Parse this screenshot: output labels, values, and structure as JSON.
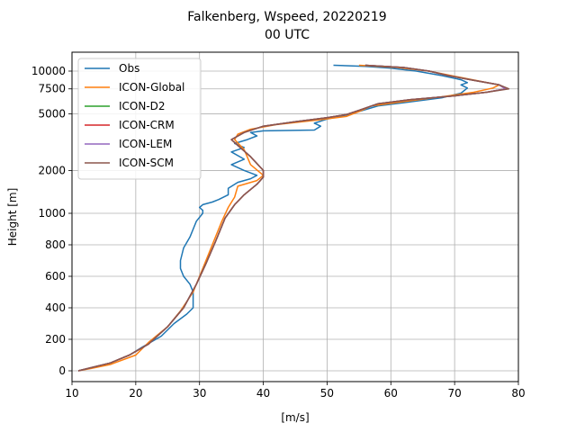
{
  "chart_data": {
    "type": "line",
    "title": "Falkenberg, Wspeed, 20220219",
    "subtitle": "00 UTC",
    "xlabel": "[m/s]",
    "ylabel": "Height [m]",
    "xlim": [
      10,
      80
    ],
    "xticks": [
      10,
      20,
      30,
      40,
      50,
      60,
      70,
      80
    ],
    "yticks": [
      {
        "value": 0,
        "label": "0"
      },
      {
        "value": 200,
        "label": "200"
      },
      {
        "value": 400,
        "label": "400"
      },
      {
        "value": 600,
        "label": "600"
      },
      {
        "value": 800,
        "label": "800"
      },
      {
        "value": 1000,
        "label": "1000"
      },
      {
        "value": 2000,
        "label": "2000"
      },
      {
        "value": 5000,
        "label": "5000"
      },
      {
        "value": 7500,
        "label": "7500"
      },
      {
        "value": 10000,
        "label": "10000"
      }
    ],
    "grid": true,
    "legend_position": "upper left",
    "series": [
      {
        "name": "Obs",
        "color": "#1f77b4",
        "points": [
          [
            11,
            0
          ],
          [
            13,
            20
          ],
          [
            16,
            50
          ],
          [
            19,
            100
          ],
          [
            21,
            150
          ],
          [
            24,
            220
          ],
          [
            26,
            300
          ],
          [
            28,
            360
          ],
          [
            29,
            400
          ],
          [
            29,
            500
          ],
          [
            28.5,
            550
          ],
          [
            27.5,
            600
          ],
          [
            27,
            650
          ],
          [
            27,
            700
          ],
          [
            27.5,
            780
          ],
          [
            28.5,
            850
          ],
          [
            29.5,
            950
          ],
          [
            30.5,
            1000
          ],
          [
            30.5,
            1050
          ],
          [
            30,
            1100
          ],
          [
            30.5,
            1150
          ],
          [
            32,
            1200
          ],
          [
            33,
            1250
          ],
          [
            34.5,
            1350
          ],
          [
            34.5,
            1500
          ],
          [
            36,
            1650
          ],
          [
            38,
            1750
          ],
          [
            39,
            1850
          ],
          [
            37,
            2000
          ],
          [
            35,
            2200
          ],
          [
            37,
            2400
          ],
          [
            35,
            2700
          ],
          [
            37,
            2900
          ],
          [
            35.5,
            3100
          ],
          [
            37.5,
            3300
          ],
          [
            39,
            3500
          ],
          [
            38,
            3700
          ],
          [
            40,
            3800
          ],
          [
            48,
            3850
          ],
          [
            49,
            4100
          ],
          [
            48,
            4300
          ],
          [
            50,
            4600
          ],
          [
            53,
            4900
          ],
          [
            55,
            5200
          ],
          [
            58,
            5700
          ],
          [
            62,
            6000
          ],
          [
            68,
            6500
          ],
          [
            71,
            7000
          ],
          [
            72,
            7600
          ],
          [
            71,
            8000
          ],
          [
            72,
            8300
          ],
          [
            71,
            8700
          ],
          [
            68,
            9300
          ],
          [
            64,
            10000
          ],
          [
            60,
            10500
          ],
          [
            56,
            10800
          ],
          [
            51,
            11000
          ]
        ]
      },
      {
        "name": "ICON-Global",
        "color": "#ff7f0e",
        "points": [
          [
            11,
            0
          ],
          [
            13,
            15
          ],
          [
            16,
            40
          ],
          [
            20,
            100
          ],
          [
            22,
            180
          ],
          [
            25,
            280
          ],
          [
            27,
            380
          ],
          [
            29,
            500
          ],
          [
            30.5,
            650
          ],
          [
            32,
            800
          ],
          [
            33.5,
            950
          ],
          [
            34.5,
            1100
          ],
          [
            35.5,
            1300
          ],
          [
            36,
            1550
          ],
          [
            39,
            1700
          ],
          [
            40,
            1850
          ],
          [
            38,
            2200
          ],
          [
            37,
            2800
          ],
          [
            35.5,
            3300
          ],
          [
            36,
            3600
          ],
          [
            38,
            3900
          ],
          [
            42,
            4200
          ],
          [
            48,
            4500
          ],
          [
            53,
            4800
          ],
          [
            55,
            5200
          ],
          [
            57,
            5700
          ],
          [
            62,
            6100
          ],
          [
            68,
            6600
          ],
          [
            73,
            7100
          ],
          [
            76,
            7600
          ],
          [
            77,
            8000
          ],
          [
            74,
            8500
          ],
          [
            70,
            9200
          ],
          [
            66,
            10000
          ],
          [
            61,
            10600
          ],
          [
            55,
            11000
          ]
        ]
      },
      {
        "name": "ICON-D2",
        "color": "#2ca02c",
        "points": [
          [
            11,
            0
          ],
          [
            13,
            20
          ],
          [
            16,
            50
          ],
          [
            19,
            100
          ],
          [
            22,
            170
          ],
          [
            25,
            280
          ],
          [
            27.5,
            400
          ],
          [
            29.5,
            550
          ],
          [
            31,
            680
          ],
          [
            32.5,
            820
          ],
          [
            34,
            970
          ],
          [
            35.5,
            1150
          ],
          [
            37,
            1350
          ],
          [
            39,
            1600
          ],
          [
            40,
            1800
          ],
          [
            40,
            2000
          ],
          [
            38,
            2500
          ],
          [
            36,
            3000
          ],
          [
            35,
            3300
          ],
          [
            37,
            3700
          ],
          [
            40,
            4100
          ],
          [
            45,
            4400
          ],
          [
            50,
            4700
          ],
          [
            53,
            4950
          ],
          [
            55,
            5300
          ],
          [
            58,
            5900
          ],
          [
            63,
            6300
          ],
          [
            70,
            6700
          ],
          [
            75,
            7100
          ],
          [
            78,
            7500
          ],
          [
            77,
            8000
          ],
          [
            73,
            8600
          ],
          [
            69,
            9300
          ],
          [
            66,
            10000
          ],
          [
            62,
            10600
          ],
          [
            56,
            11000
          ]
        ]
      },
      {
        "name": "ICON-CRM",
        "color": "#d62728",
        "points": [
          [
            11,
            0
          ],
          [
            13,
            20
          ],
          [
            16,
            50
          ],
          [
            19,
            100
          ],
          [
            22,
            170
          ],
          [
            25,
            280
          ],
          [
            27.5,
            400
          ],
          [
            29.5,
            550
          ],
          [
            31,
            680
          ],
          [
            32.5,
            820
          ],
          [
            34,
            970
          ],
          [
            35.5,
            1150
          ],
          [
            37,
            1350
          ],
          [
            39,
            1600
          ],
          [
            40,
            1800
          ],
          [
            40,
            2000
          ],
          [
            38,
            2500
          ],
          [
            36,
            3000
          ],
          [
            35,
            3300
          ],
          [
            37,
            3700
          ],
          [
            40,
            4100
          ],
          [
            45,
            4400
          ],
          [
            50,
            4700
          ],
          [
            53,
            4950
          ],
          [
            55,
            5300
          ],
          [
            58,
            5900
          ],
          [
            63,
            6300
          ],
          [
            70,
            6700
          ],
          [
            75,
            7100
          ],
          [
            78,
            7500
          ],
          [
            77,
            8000
          ],
          [
            73,
            8600
          ],
          [
            69,
            9300
          ],
          [
            66,
            10000
          ],
          [
            62,
            10600
          ],
          [
            56,
            11000
          ]
        ]
      },
      {
        "name": "ICON-LEM",
        "color": "#9467bd",
        "points": [
          [
            11,
            0
          ],
          [
            13,
            20
          ],
          [
            16,
            50
          ],
          [
            19,
            100
          ],
          [
            22,
            170
          ],
          [
            25,
            280
          ],
          [
            27.5,
            400
          ],
          [
            29.5,
            550
          ],
          [
            31,
            680
          ],
          [
            32.5,
            820
          ],
          [
            34,
            970
          ],
          [
            35.5,
            1150
          ],
          [
            37,
            1350
          ],
          [
            39,
            1600
          ],
          [
            40,
            1800
          ],
          [
            40,
            2000
          ],
          [
            38,
            2500
          ],
          [
            36,
            3000
          ],
          [
            35,
            3300
          ],
          [
            37,
            3700
          ],
          [
            40,
            4100
          ],
          [
            45,
            4400
          ],
          [
            50,
            4700
          ],
          [
            53,
            4950
          ],
          [
            55,
            5300
          ],
          [
            58,
            5900
          ],
          [
            63,
            6300
          ],
          [
            70,
            6700
          ],
          [
            75,
            7100
          ],
          [
            78,
            7500
          ],
          [
            77,
            8000
          ],
          [
            73,
            8600
          ],
          [
            69,
            9300
          ],
          [
            66,
            10000
          ],
          [
            62,
            10600
          ],
          [
            56,
            11000
          ]
        ]
      },
      {
        "name": "ICON-SCM",
        "color": "#8c564b",
        "points": [
          [
            11,
            0
          ],
          [
            13,
            20
          ],
          [
            16,
            50
          ],
          [
            19,
            100
          ],
          [
            22,
            170
          ],
          [
            25,
            280
          ],
          [
            27.5,
            400
          ],
          [
            29.5,
            550
          ],
          [
            31,
            680
          ],
          [
            32.5,
            820
          ],
          [
            34,
            970
          ],
          [
            35.5,
            1150
          ],
          [
            37,
            1350
          ],
          [
            39,
            1600
          ],
          [
            40,
            1800
          ],
          [
            40,
            2000
          ],
          [
            38,
            2500
          ],
          [
            36,
            3000
          ],
          [
            35,
            3300
          ],
          [
            37,
            3700
          ],
          [
            40,
            4100
          ],
          [
            45,
            4400
          ],
          [
            50,
            4700
          ],
          [
            53,
            4950
          ],
          [
            55,
            5300
          ],
          [
            58,
            5900
          ],
          [
            63,
            6300
          ],
          [
            70,
            6700
          ],
          [
            75,
            7100
          ],
          [
            78.5,
            7500
          ],
          [
            77,
            8000
          ],
          [
            73,
            8600
          ],
          [
            69,
            9300
          ],
          [
            66,
            10000
          ],
          [
            62,
            10600
          ],
          [
            56,
            11000
          ]
        ]
      }
    ]
  }
}
